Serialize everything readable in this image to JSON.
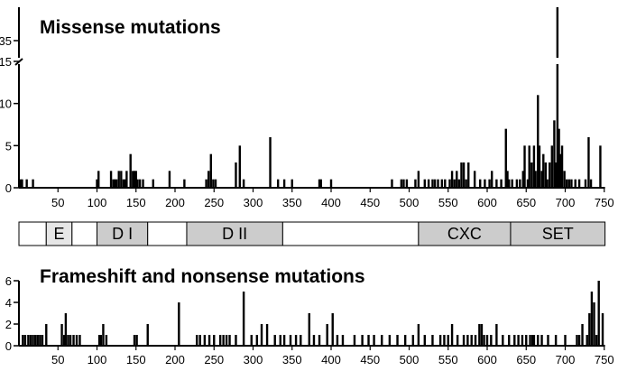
{
  "chart_data": [
    {
      "type": "bar",
      "title": "Missense mutations",
      "xlabel": "",
      "ylabel": "",
      "xlim": [
        0,
        751
      ],
      "ylim": [
        0,
        15
      ],
      "y_break": {
        "upper_tick": 35,
        "upper_max": 36
      },
      "y_ticks": [
        "0",
        "5",
        "10",
        "15"
      ],
      "y_upper_ticks": [
        "35"
      ],
      "x_ticks": [
        "50",
        "100",
        "150",
        "200",
        "250",
        "300",
        "350",
        "400",
        "450",
        "500",
        "550",
        "600",
        "650",
        "700",
        "750"
      ],
      "x": [
        2,
        4,
        10,
        18,
        100,
        102,
        118,
        121,
        123,
        125,
        128,
        131,
        134,
        136,
        138,
        143,
        146,
        148,
        150,
        152,
        155,
        159,
        172,
        193,
        212,
        240,
        243,
        246,
        249,
        252,
        278,
        283,
        288,
        322,
        332,
        340,
        350,
        385,
        387,
        400,
        478,
        490,
        493,
        497,
        508,
        512,
        520,
        525,
        530,
        533,
        537,
        542,
        546,
        552,
        555,
        558,
        561,
        564,
        567,
        570,
        573,
        576,
        584,
        591,
        597,
        603,
        606,
        612,
        618,
        624,
        626,
        628,
        632,
        638,
        642,
        646,
        648,
        652,
        654,
        657,
        660,
        662,
        665,
        667,
        670,
        672,
        675,
        677,
        680,
        683,
        686,
        688,
        690,
        692,
        694,
        696,
        699,
        702,
        705,
        708,
        713,
        718,
        726,
        730,
        733,
        745
      ],
      "values": [
        1,
        1,
        1,
        1,
        1,
        2,
        2,
        1,
        1,
        1,
        2,
        2,
        1,
        1,
        2,
        4,
        2,
        2,
        2,
        1,
        1,
        1,
        1,
        2,
        1,
        1,
        2,
        4,
        1,
        1,
        3,
        5,
        1,
        6,
        1,
        1,
        1,
        1,
        1,
        1,
        1,
        1,
        1,
        1,
        1,
        2,
        1,
        1,
        1,
        1,
        1,
        1,
        1,
        1,
        2,
        1,
        2,
        1,
        3,
        3,
        1,
        3,
        2,
        1,
        1,
        1,
        2,
        1,
        1,
        7,
        2,
        1,
        1,
        1,
        1,
        2,
        5,
        1,
        5,
        3,
        5,
        2,
        11,
        5,
        2,
        4,
        3,
        1,
        3,
        5,
        8,
        3,
        36,
        7,
        4,
        5,
        2,
        1,
        1,
        1,
        1,
        1,
        1,
        6,
        1,
        5
      ]
    },
    {
      "type": "bar",
      "title": "Frameshift and nonsense mutations",
      "xlabel": "",
      "ylabel": "",
      "xlim": [
        0,
        751
      ],
      "ylim": [
        0,
        6
      ],
      "y_ticks": [
        "0",
        "2",
        "4",
        "6"
      ],
      "x_ticks": [
        "50",
        "100",
        "150",
        "200",
        "250",
        "300",
        "350",
        "400",
        "450",
        "500",
        "550",
        "600",
        "650",
        "700",
        "750"
      ],
      "x": [
        5,
        8,
        12,
        15,
        18,
        21,
        24,
        27,
        30,
        35,
        55,
        58,
        60,
        63,
        66,
        70,
        74,
        78,
        103,
        105,
        108,
        112,
        148,
        151,
        165,
        205,
        228,
        232,
        238,
        244,
        250,
        258,
        262,
        266,
        270,
        278,
        288,
        298,
        305,
        311,
        318,
        328,
        335,
        340,
        348,
        355,
        361,
        372,
        378,
        385,
        395,
        402,
        408,
        415,
        430,
        440,
        448,
        455,
        465,
        475,
        485,
        495,
        505,
        512,
        520,
        530,
        540,
        545,
        550,
        555,
        562,
        570,
        575,
        580,
        585,
        590,
        593,
        596,
        600,
        605,
        612,
        620,
        628,
        635,
        640,
        645,
        650,
        655,
        658,
        660,
        665,
        670,
        678,
        688,
        700,
        715,
        718,
        722,
        728,
        731,
        734,
        737,
        740,
        743,
        748
      ],
      "values": [
        1,
        1,
        1,
        1,
        1,
        1,
        1,
        1,
        1,
        2,
        2,
        1,
        3,
        1,
        1,
        1,
        1,
        1,
        1,
        1,
        2,
        1,
        1,
        1,
        2,
        4,
        1,
        1,
        1,
        1,
        1,
        1,
        1,
        1,
        1,
        1,
        5,
        1,
        1,
        2,
        2,
        1,
        1,
        1,
        1,
        1,
        1,
        3,
        1,
        1,
        2,
        3,
        1,
        1,
        1,
        1,
        1,
        1,
        1,
        1,
        1,
        1,
        1,
        2,
        1,
        1,
        1,
        1,
        1,
        2,
        1,
        1,
        1,
        1,
        1,
        2,
        2,
        1,
        1,
        1,
        2,
        1,
        1,
        1,
        1,
        1,
        1,
        1,
        1,
        1,
        1,
        1,
        1,
        1,
        1,
        1,
        1,
        2,
        1,
        3,
        5,
        4,
        1,
        6,
        3
      ]
    }
  ],
  "domain_bar": {
    "segments": [
      {
        "label": "",
        "start": 0,
        "end": 35,
        "color": "#ffffff"
      },
      {
        "label": "E",
        "start": 35,
        "end": 68,
        "color": "#e6e6e6"
      },
      {
        "label": "",
        "start": 68,
        "end": 100,
        "color": "#ffffff"
      },
      {
        "label": "D I",
        "start": 100,
        "end": 165,
        "color": "#cccccc"
      },
      {
        "label": "",
        "start": 165,
        "end": 215,
        "color": "#ffffff"
      },
      {
        "label": "D II",
        "start": 215,
        "end": 338,
        "color": "#cccccc"
      },
      {
        "label": "",
        "start": 338,
        "end": 512,
        "color": "#ffffff"
      },
      {
        "label": "CXC",
        "start": 512,
        "end": 630,
        "color": "#cccccc"
      },
      {
        "label": "SET",
        "start": 630,
        "end": 751,
        "color": "#cccccc"
      }
    ]
  }
}
